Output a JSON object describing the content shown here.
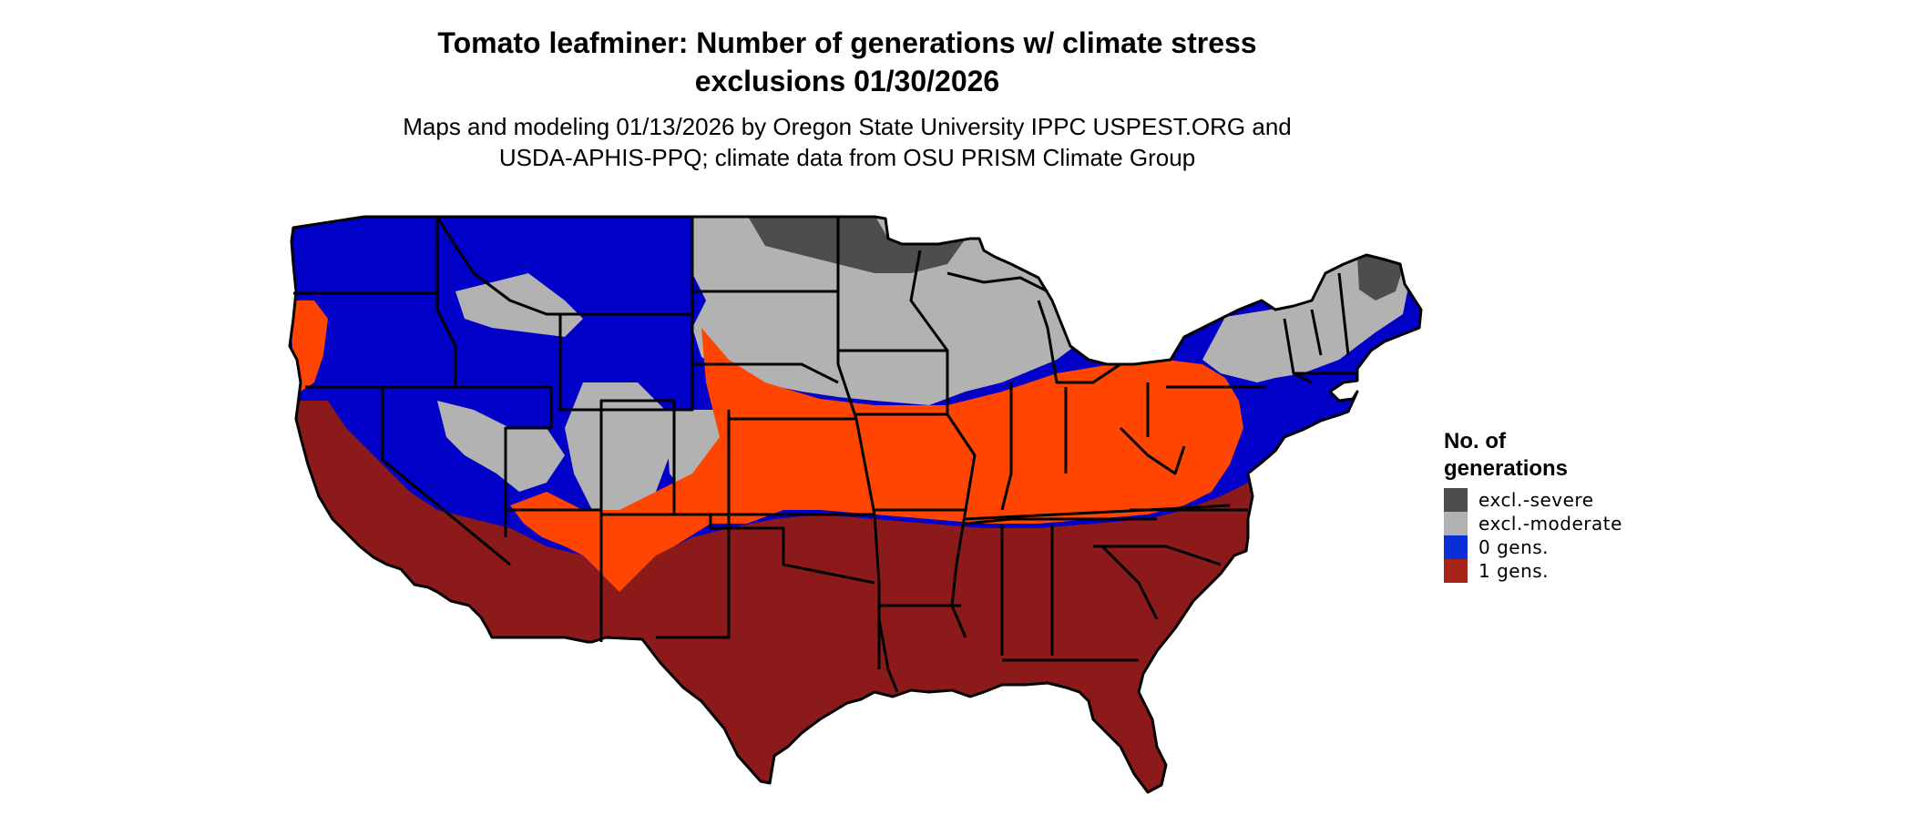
{
  "title_line1": "Tomato leafminer: Number of generations w/ climate stress",
  "title_line2": "exclusions 01/30/2026",
  "subtitle_line1": "Maps and modeling 01/13/2026 by Oregon State University IPPC USPEST.ORG and",
  "subtitle_line2": "USDA-APHIS-PPQ; climate data from OSU PRISM Climate Group",
  "legend": {
    "title": "No. of generations",
    "items": [
      {
        "label": "excl.-severe",
        "color": "#4d4d4d"
      },
      {
        "label": "excl.-moderate",
        "color": "#b2b2b2"
      },
      {
        "label": "0 gens.",
        "color": "#0a2fd6"
      },
      {
        "label": "1 gens.",
        "color": "#a82418"
      }
    ]
  },
  "colors": {
    "severe": "#4d4d4d",
    "moderate": "#b2b2b2",
    "zero_gens": "#0000c8",
    "one_gens": "#8c1a1a",
    "transition": "#ff4500",
    "border": "#000000"
  }
}
